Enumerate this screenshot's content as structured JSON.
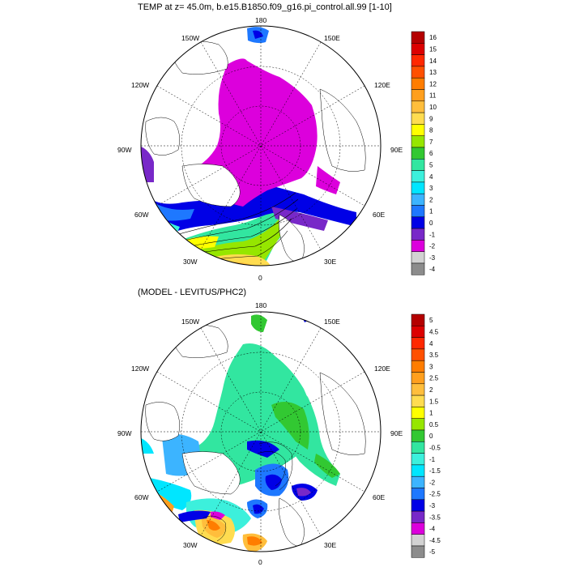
{
  "top_panel": {
    "title": "TEMP at z=  45.0m, b.e15.B1850.f09_g16.pi_control.all.99 [1-10]",
    "labels": {
      "top": "180",
      "left": "90W",
      "right": "90E",
      "bottom": "0",
      "l150": "150W",
      "l120": "120W",
      "l60": "60W",
      "l30": "30W",
      "r150": "150E",
      "r120": "120E",
      "r60": "60E",
      "r30": "30E"
    },
    "colorbar": {
      "ticks": [
        "16",
        "15",
        "14",
        "13",
        "12",
        "11",
        "10",
        "9",
        "8",
        "7",
        "6",
        "5",
        "4",
        "3",
        "2",
        "1",
        "0",
        "-1",
        "-2",
        "-3",
        "-4"
      ],
      "colors": [
        "#b40000",
        "#dc0000",
        "#ff2800",
        "#ff5000",
        "#ff7d00",
        "#ff9f1e",
        "#ffbe3c",
        "#ffdc50",
        "#ffff00",
        "#96e600",
        "#32c832",
        "#32e6a0",
        "#3cf0dc",
        "#00e6ff",
        "#3cb4ff",
        "#1e78ff",
        "#0000e6",
        "#7828c8",
        "#dc00dc",
        "#d2d2d2",
        "#8c8c8c"
      ]
    }
  },
  "bottom_panel": {
    "title": "(MODEL - LEVITUS/PHC2)",
    "labels": {
      "top": "180",
      "left": "90W",
      "right": "90E",
      "bottom": "0",
      "l150": "150W",
      "l120": "120W",
      "l60": "60W",
      "l30": "30W",
      "r150": "150E",
      "r120": "120E",
      "r60": "60E",
      "r30": "30E"
    },
    "colorbar": {
      "ticks": [
        "5",
        "4.5",
        "4",
        "3.5",
        "3",
        "2.5",
        "2",
        "1.5",
        "1",
        "0.5",
        "0",
        "-0.5",
        "-1",
        "-1.5",
        "-2",
        "-2.5",
        "-3",
        "-3.5",
        "-4",
        "-4.5",
        "-5"
      ],
      "colors": [
        "#b40000",
        "#dc0000",
        "#ff2800",
        "#ff5000",
        "#ff7d00",
        "#ff9f1e",
        "#ffbe3c",
        "#ffdc50",
        "#ffff00",
        "#96e600",
        "#32c832",
        "#32e6a0",
        "#3cf0dc",
        "#00e6ff",
        "#3cb4ff",
        "#1e78ff",
        "#0000e6",
        "#7828c8",
        "#dc00dc",
        "#d2d2d2",
        "#8c8c8c"
      ]
    }
  }
}
